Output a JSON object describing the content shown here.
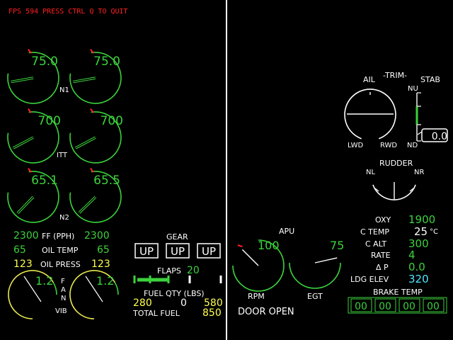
{
  "header": {
    "status": "FPS 594  PRESS CTRL Q TO QUIT"
  },
  "engine": {
    "n1": {
      "label": "N1",
      "left": "75.0",
      "right": "75.0",
      "left_fraction": 0.75,
      "right_fraction": 0.75
    },
    "itt": {
      "label": "ITT",
      "left": "700",
      "right": "700",
      "left_fraction": 0.7,
      "right_fraction": 0.7
    },
    "n2": {
      "label": "N2",
      "left": "65.1",
      "right": "65.5",
      "left_fraction": 0.65,
      "right_fraction": 0.655
    },
    "ff": {
      "label": "FF  (PPH)",
      "left": "2300",
      "right": "2300"
    },
    "oil_temp": {
      "label": "OIL TEMP",
      "left": "65",
      "right": "65"
    },
    "oil_press": {
      "label": "OIL PRESS",
      "left": "123",
      "right": "123"
    },
    "fan_vib": {
      "label_fan": "F\nA\nN",
      "label_f": "F",
      "label_a": "A",
      "label_n": "N",
      "label_vib": "VIB",
      "left": "1.2",
      "right": "1.2",
      "left_fraction": 0.24,
      "right_fraction": 0.24
    }
  },
  "gear": {
    "label": "GEAR",
    "positions": [
      "UP",
      "UP",
      "UP"
    ]
  },
  "flaps": {
    "label": "FLAPS",
    "value": "20",
    "fraction": 0.2
  },
  "fuel": {
    "label": "FUEL QTY (LBS)",
    "left": "280",
    "center": "0",
    "right": "580",
    "total_label": "TOTAL FUEL",
    "total": "850"
  },
  "apu": {
    "label": "APU",
    "rpm_label": "RPM",
    "rpm": "100",
    "rpm_fraction": 1.0,
    "egt_label": "EGT",
    "egt": "75",
    "egt_fraction": 0.75,
    "door": "DOOR OPEN"
  },
  "trim": {
    "title": "-TRIM-",
    "ail_label": "AIL",
    "stab_label": "STAB",
    "lwd_label": "LWD",
    "rwd_label": "RWD",
    "nu_label": "NU",
    "nd_label": "ND",
    "stab_value": "0.0",
    "rudder_label": "RUDDER",
    "nl_label": "NL",
    "nr_label": "NR"
  },
  "cabin": {
    "oxy_label": "OXY",
    "oxy": "1900",
    "ctemp_label": "C TEMP",
    "ctemp": "25",
    "ctemp_unit": "°C",
    "calt_label": "C ALT",
    "calt": "300",
    "rate_label": "RATE",
    "rate": "4",
    "dp_label": "Δ P",
    "dp": "0.0",
    "ldg_label": "LDG ELEV",
    "ldg": "320"
  },
  "brake": {
    "label": "BRAKE TEMP",
    "values": [
      "00",
      "00",
      "00",
      "00"
    ]
  },
  "colors": {
    "green": "#3cd23c",
    "white": "#ffffff",
    "yellow": "#ffff50",
    "red": "#ff2020",
    "cyan": "#50e6ff",
    "amber": "#e8e850"
  }
}
